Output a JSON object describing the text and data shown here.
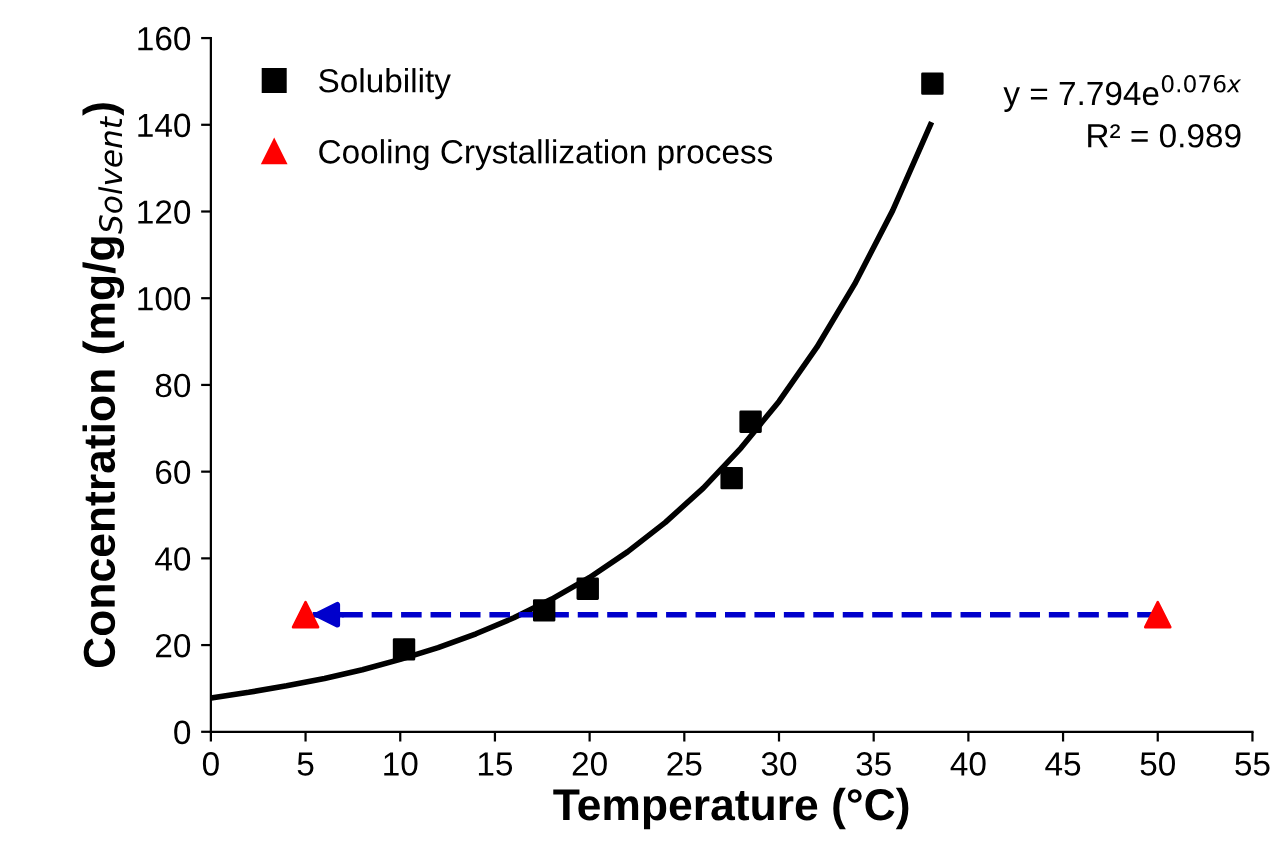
{
  "chart_data": {
    "type": "scatter",
    "xlabel": "Temperature (°C)",
    "ylabel": "Concentration (mg/g$_{Solvent}$)",
    "xlim": [
      0,
      55
    ],
    "xticks": [
      0,
      5,
      10,
      15,
      20,
      25,
      30,
      35,
      40,
      45,
      50,
      55
    ],
    "ylim": [
      0,
      160
    ],
    "yticks": [
      0,
      20,
      40,
      60,
      80,
      100,
      120,
      140,
      160
    ],
    "grid": false,
    "legend": "top left",
    "annotations": [
      "y = 7.794e$^{0.076x}$",
      "R² = 0.989"
    ],
    "series": [
      {
        "name": "Solubility",
        "marker": "square",
        "color": "#000000",
        "x": [
          10.2,
          17.6,
          19.9,
          27.5,
          28.5,
          38.1
        ],
        "values": [
          19,
          28,
          33,
          58.5,
          71.5,
          149.5
        ]
      },
      {
        "type": "line",
        "color": "#000000",
        "line_style": "solid",
        "marker": "none",
        "x": [
          0,
          2,
          4,
          6,
          8,
          10,
          12,
          14,
          16,
          18,
          20,
          22,
          24,
          26,
          28,
          30,
          32,
          34,
          36,
          38
        ],
        "values": [
          7.8,
          9.1,
          10.6,
          12.3,
          14.3,
          16.7,
          19.4,
          22.6,
          26.3,
          30.6,
          35.6,
          41.5,
          48.3,
          56.2,
          65.5,
          76.2,
          88.7,
          103.3,
          120.2,
          140.0
        ]
      },
      {
        "type": "line",
        "color": "#0000cc",
        "line_style": "dashed",
        "marker": "none",
        "x": [
          50,
          5
        ],
        "values": [
          27,
          27
        ]
      },
      {
        "name": "Cooling Crystallization process",
        "marker": "triangle",
        "color": "#ff0000",
        "x": [
          5,
          50
        ],
        "values": [
          27,
          27
        ]
      }
    ]
  }
}
